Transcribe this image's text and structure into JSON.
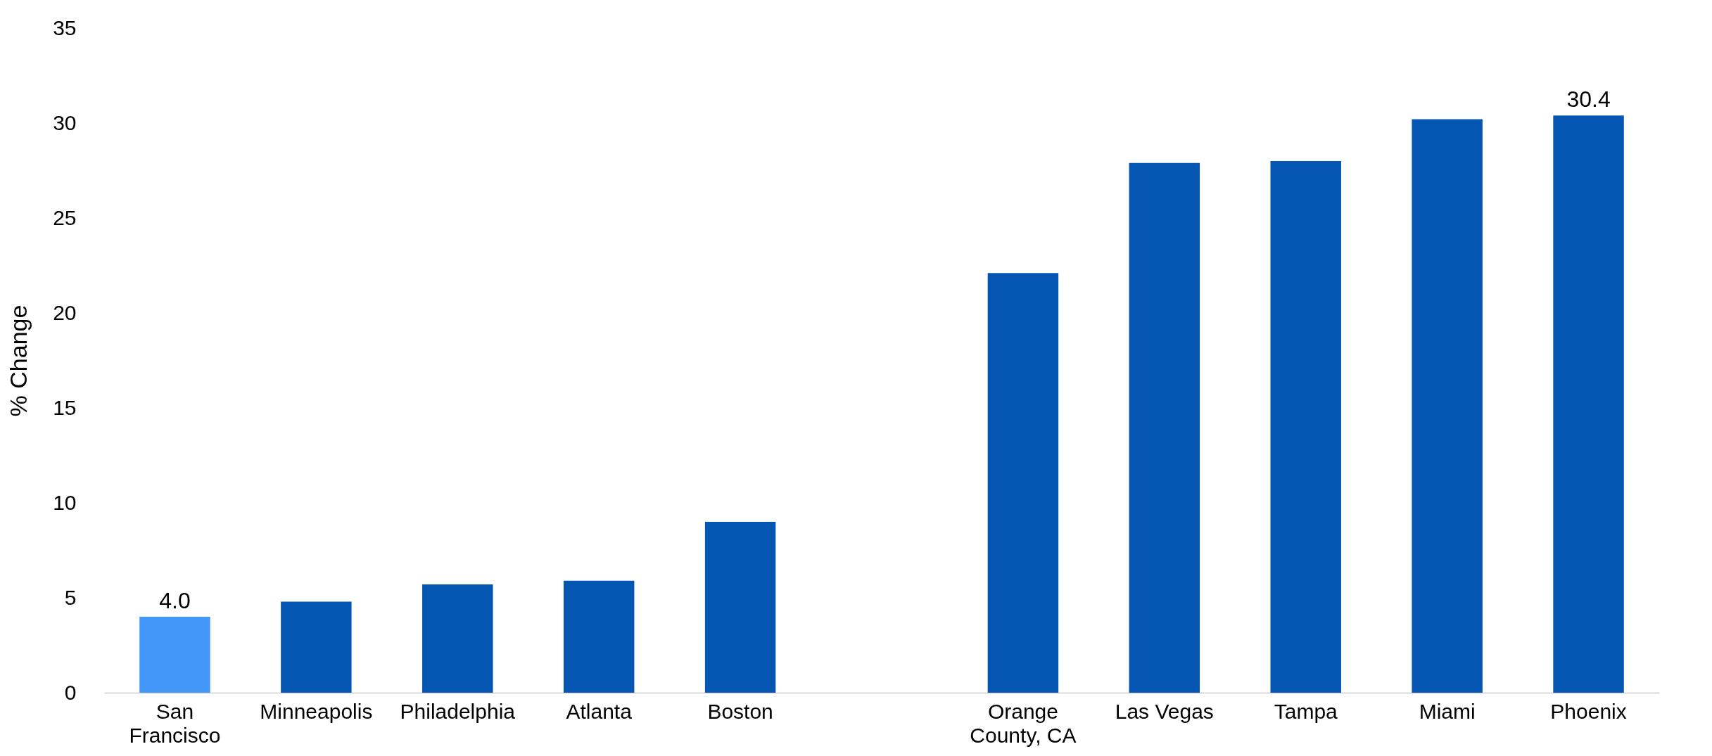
{
  "chart_data": {
    "type": "bar",
    "ylabel": "% Change",
    "categories": [
      "San Francisco",
      "Minneapolis",
      "Philadelphia",
      "Atlanta",
      "Boston",
      null,
      "Orange County, CA",
      "Las Vegas",
      "Tampa",
      "Miami",
      "Phoenix"
    ],
    "values": [
      4.0,
      4.8,
      5.7,
      5.9,
      9.0,
      null,
      22.1,
      27.9,
      28.0,
      30.2,
      30.4
    ],
    "colors": [
      "#4297f9",
      "#0556b3",
      "#0556b3",
      "#0556b3",
      "#0556b3",
      "#0556b3",
      "#0556b3",
      "#0556b3",
      "#0556b3",
      "#0556b3",
      "#0556b3"
    ],
    "value_labels": [
      "4.0",
      null,
      null,
      null,
      null,
      null,
      null,
      null,
      null,
      null,
      "30.4"
    ],
    "ylim": [
      0,
      35
    ],
    "yticks": [
      0,
      5,
      10,
      15,
      20,
      25,
      30,
      35
    ],
    "grid": false
  }
}
